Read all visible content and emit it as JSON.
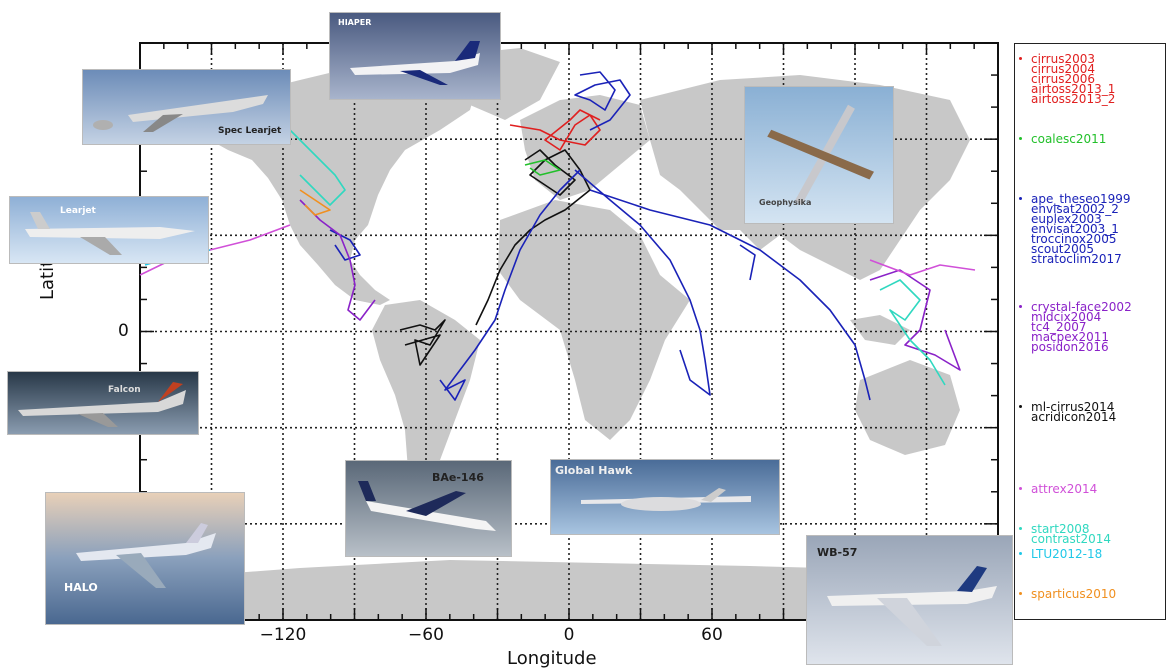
{
  "axes": {
    "xlabel": "Longitude",
    "ylabel": "Latitude",
    "x_ticks": [
      {
        "lon": -120,
        "label": "−120"
      },
      {
        "lon": -60,
        "label": "−60"
      },
      {
        "lon": 0,
        "label": "0"
      },
      {
        "lon": 60,
        "label": "60"
      }
    ],
    "y_ticks": [
      {
        "lat": 0,
        "label": "0"
      }
    ],
    "lon_range": [
      -180,
      180
    ],
    "lat_range": [
      -90,
      90
    ],
    "gridlines": "dotted every 30 degrees"
  },
  "aircraft_photos": [
    {
      "key": "hiaper",
      "label": "HIAPER"
    },
    {
      "key": "spec-learjet",
      "label": "Spec Learjet"
    },
    {
      "key": "learjet",
      "label": "Learjet"
    },
    {
      "key": "falcon",
      "label": "Falcon"
    },
    {
      "key": "halo",
      "label": "HALO"
    },
    {
      "key": "bae-146",
      "label": "BAe-146"
    },
    {
      "key": "global-hawk",
      "label": "Global Hawk"
    },
    {
      "key": "wb-57",
      "label": "WB-57"
    },
    {
      "key": "geophysika",
      "label": "Geophysika"
    }
  ],
  "legend": {
    "groups": [
      {
        "color": "#e02020",
        "items": [
          "cirrus2003",
          "cirrus2004",
          "cirrus2006",
          "airtoss2013_1",
          "airtoss2013_2"
        ]
      },
      {
        "color": "#22c02a",
        "items": [
          "coalesc2011"
        ]
      },
      {
        "color": "#1a22b8",
        "items": [
          "ape_theseo1999",
          "envisat2002_2",
          "euplex2003",
          "envisat2003_1",
          "troccinox2005",
          "scout2005",
          "stratoclim2017"
        ]
      },
      {
        "color": "#8a22c8",
        "items": [
          "crystal-face2002",
          "midcix2004",
          "tc4_2007",
          "macpex2011",
          "posidon2016"
        ]
      },
      {
        "color": "#111111",
        "items": [
          "ml-cirrus2014",
          "acridicon2014"
        ]
      },
      {
        "color": "#d050d8",
        "items": [
          "attrex2014"
        ]
      },
      {
        "color": "#30d8c0",
        "items": [
          "start2008",
          "contrast2014"
        ]
      },
      {
        "color": "#20c8e8",
        "items": [
          "LTU2012-18"
        ]
      },
      {
        "color": "#f09020",
        "items": [
          "sparticus2010"
        ]
      }
    ]
  }
}
